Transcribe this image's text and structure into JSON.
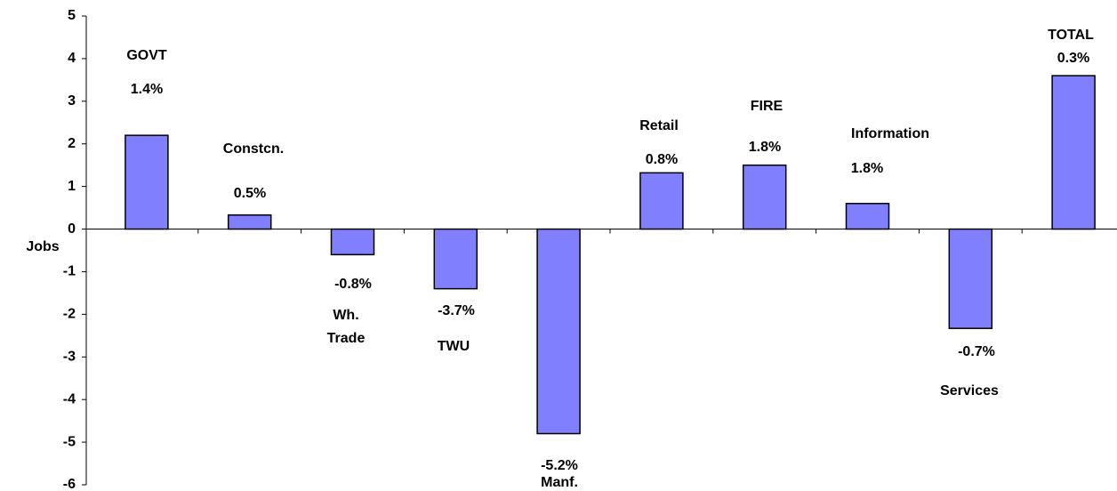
{
  "chart_data": {
    "type": "bar",
    "y_label": "Jobs",
    "categories": [
      "GOVT",
      "Constcn.",
      "Wh.\nTrade",
      "TWU",
      "Manf.",
      "Retail",
      "FIRE",
      "Information",
      "Services",
      "TOTAL"
    ],
    "values": [
      2.2,
      0.33,
      -0.6,
      -1.4,
      -4.8,
      1.32,
      1.5,
      0.6,
      -2.33,
      3.6
    ],
    "growth_labels": [
      "1.4%",
      "0.5%",
      "-0.8%",
      "-3.7%",
      "-5.2%",
      "0.8%",
      "1.8%",
      "1.8%",
      "-0.7%",
      "0.3%"
    ],
    "color": "#8080ff",
    "ylim": [
      -6,
      5
    ],
    "yticks": [
      -6,
      -5,
      -4,
      -3,
      -2,
      -1,
      0,
      1,
      2,
      3,
      4,
      5
    ],
    "grid": false
  }
}
